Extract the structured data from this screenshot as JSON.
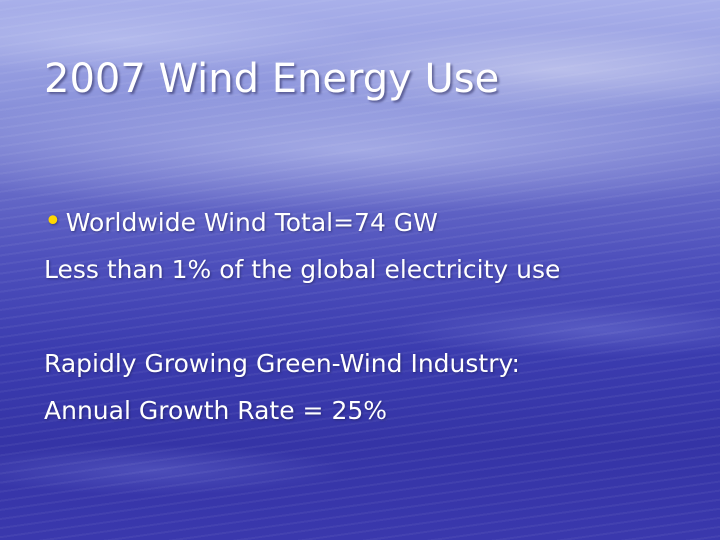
{
  "slide": {
    "title": "2007 Wind Energy Use",
    "bullet_symbol": "•",
    "lines": [
      "Worldwide Wind Total=74 GW",
      "Less than 1% of the global electricity use",
      "Rapidly Growing Green-Wind Industry:",
      "Annual Growth Rate = 25%"
    ]
  },
  "colors": {
    "background_top": "#a9b0ea",
    "background_bottom": "#3534a6",
    "text": "#ffffff",
    "bullet": "#ffd700"
  }
}
